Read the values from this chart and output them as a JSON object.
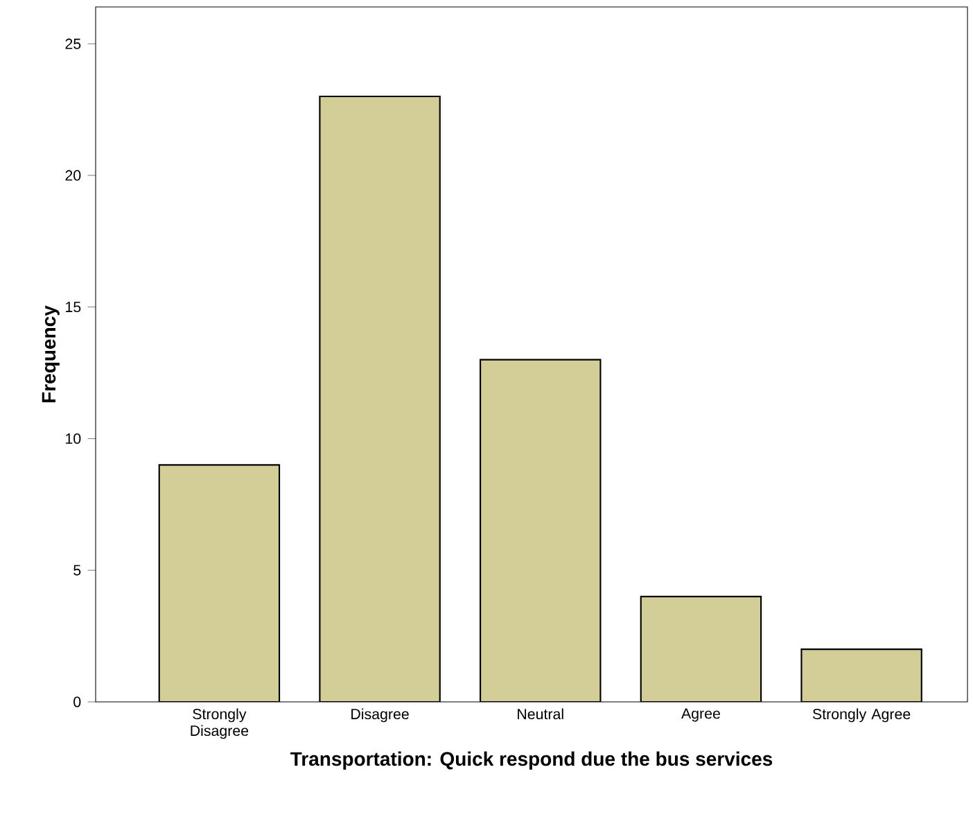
{
  "chart_data": {
    "type": "bar",
    "xlabel": "Transportation: Quick respond due the bus services",
    "ylabel": "Frequency",
    "categories": [
      "Strongly Disagree",
      "Disagree",
      "Neutral",
      "Agree",
      "Strongly Agree"
    ],
    "values": [
      9,
      23,
      13,
      4,
      2
    ],
    "color": "#d3cd97",
    "ylim": [
      0,
      26.4
    ],
    "yticks": [
      0,
      5,
      10,
      15,
      20,
      25
    ]
  }
}
